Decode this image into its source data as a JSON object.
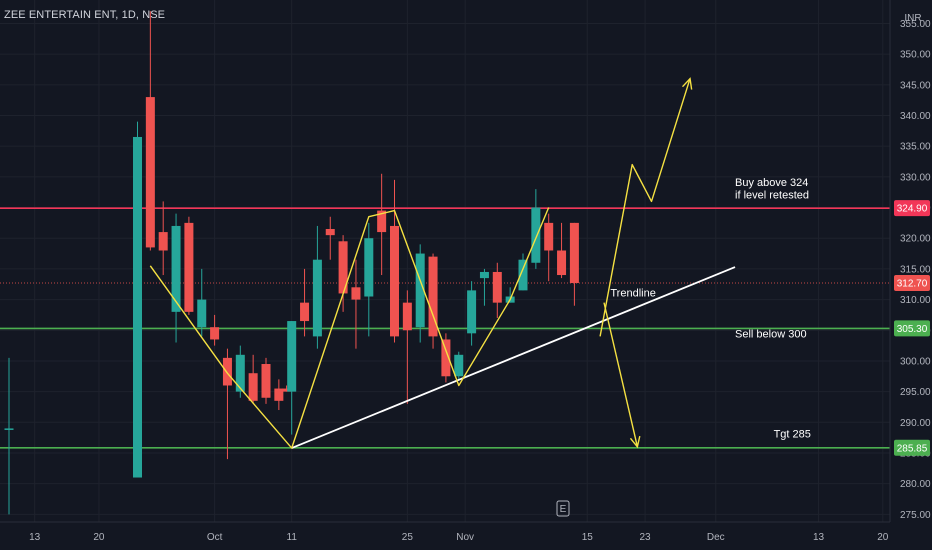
{
  "header": {
    "title": "ZEE ENTERTAIN ENT, 1D, NSE"
  },
  "currency": "INR",
  "event_marker": "E",
  "colors": {
    "background": "#131722",
    "grid": "#1e222d",
    "up": "#26a69a",
    "down": "#ef5350",
    "resistance": "#f23658",
    "support": "#4caf50",
    "trendline": "#ffffff",
    "projection": "#f5e142",
    "current_price": "#ef5350"
  },
  "chart_data": {
    "type": "candlestick",
    "symbol": "ZEE ENTERTAIN ENT",
    "interval": "1D",
    "exchange": "NSE",
    "ylim": [
      275,
      357
    ],
    "y_ticks": [
      275,
      280,
      285,
      290,
      295,
      300,
      305,
      310,
      315,
      320,
      325,
      330,
      335,
      340,
      345,
      350,
      355
    ],
    "x_ticks": [
      {
        "label": "13",
        "slot": -8
      },
      {
        "label": "20",
        "slot": -3
      },
      {
        "label": "Oct",
        "slot": 6
      },
      {
        "label": "11",
        "slot": 12
      },
      {
        "label": "25",
        "slot": 21
      },
      {
        "label": "Nov",
        "slot": 25.5
      },
      {
        "label": "15",
        "slot": 35
      },
      {
        "label": "23",
        "slot": 39.5
      },
      {
        "label": "Dec",
        "slot": 45
      },
      {
        "label": "13",
        "slot": 53
      },
      {
        "label": "20",
        "slot": 58
      }
    ],
    "candles": [
      {
        "slot": -10,
        "o": 289.0,
        "h": 300.5,
        "l": 275.0,
        "c": 289.0
      },
      {
        "slot": 0,
        "o": 281.0,
        "h": 339.0,
        "l": 281.0,
        "c": 336.5
      },
      {
        "slot": 1,
        "o": 343.0,
        "h": 357.0,
        "l": 318.0,
        "c": 318.5
      },
      {
        "slot": 2,
        "o": 321.0,
        "h": 326.0,
        "l": 314.0,
        "c": 318.0
      },
      {
        "slot": 3,
        "o": 308.0,
        "h": 324.0,
        "l": 303.0,
        "c": 322.0
      },
      {
        "slot": 4,
        "o": 322.5,
        "h": 323.5,
        "l": 307.5,
        "c": 308.0
      },
      {
        "slot": 5,
        "o": 305.5,
        "h": 315.0,
        "l": 304.0,
        "c": 310.0
      },
      {
        "slot": 6,
        "o": 305.5,
        "h": 307.5,
        "l": 302.5,
        "c": 303.5
      },
      {
        "slot": 7,
        "o": 300.5,
        "h": 302.0,
        "l": 284.0,
        "c": 296.0
      },
      {
        "slot": 8,
        "o": 295.0,
        "h": 302.5,
        "l": 294.0,
        "c": 301.0
      },
      {
        "slot": 9,
        "o": 298.0,
        "h": 301.0,
        "l": 293.0,
        "c": 293.5
      },
      {
        "slot": 10,
        "o": 299.5,
        "h": 300.5,
        "l": 293.0,
        "c": 294.0
      },
      {
        "slot": 11,
        "o": 295.5,
        "h": 297.0,
        "l": 292.0,
        "c": 293.5
      },
      {
        "slot": 11.6,
        "o": 295.5,
        "h": 296.0,
        "l": 295.0,
        "c": 295.0
      },
      {
        "slot": 12,
        "o": 295.0,
        "h": 306.5,
        "l": 288.0,
        "c": 306.5
      },
      {
        "slot": 13,
        "o": 309.5,
        "h": 315.0,
        "l": 304.0,
        "c": 306.5
      },
      {
        "slot": 14,
        "o": 304.0,
        "h": 322.0,
        "l": 302.0,
        "c": 316.5
      },
      {
        "slot": 15,
        "o": 321.5,
        "h": 323.5,
        "l": 316.5,
        "c": 320.5
      },
      {
        "slot": 16,
        "o": 319.5,
        "h": 320.5,
        "l": 308.0,
        "c": 311.0
      },
      {
        "slot": 17,
        "o": 312.0,
        "h": 316.5,
        "l": 302.0,
        "c": 310.0
      },
      {
        "slot": 18,
        "o": 310.5,
        "h": 322.5,
        "l": 304.0,
        "c": 320.0
      },
      {
        "slot": 19,
        "o": 324.5,
        "h": 330.5,
        "l": 314.0,
        "c": 321.0
      },
      {
        "slot": 20,
        "o": 322.0,
        "h": 329.5,
        "l": 303.0,
        "c": 304.0
      },
      {
        "slot": 21,
        "o": 309.5,
        "h": 311.5,
        "l": 293.0,
        "c": 305.0
      },
      {
        "slot": 22,
        "o": 305.5,
        "h": 319.0,
        "l": 303.0,
        "c": 317.5
      },
      {
        "slot": 23,
        "o": 317.0,
        "h": 317.5,
        "l": 302.0,
        "c": 304.0
      },
      {
        "slot": 24,
        "o": 303.5,
        "h": 304.5,
        "l": 296.5,
        "c": 297.5
      },
      {
        "slot": 25,
        "o": 297.5,
        "h": 301.5,
        "l": 297.0,
        "c": 301.0
      },
      {
        "slot": 26,
        "o": 304.5,
        "h": 313.0,
        "l": 302.5,
        "c": 311.5
      },
      {
        "slot": 27,
        "o": 313.5,
        "h": 315.0,
        "l": 309.0,
        "c": 314.5
      },
      {
        "slot": 28,
        "o": 314.5,
        "h": 316.0,
        "l": 307.0,
        "c": 309.5
      },
      {
        "slot": 29,
        "o": 309.5,
        "h": 312.0,
        "l": 309.5,
        "c": 310.5
      },
      {
        "slot": 30,
        "o": 311.5,
        "h": 317.5,
        "l": 311.5,
        "c": 316.5
      },
      {
        "slot": 31,
        "o": 316.0,
        "h": 328.0,
        "l": 315.0,
        "c": 325.0
      },
      {
        "slot": 32,
        "o": 322.5,
        "h": 324.0,
        "l": 313.0,
        "c": 318.0
      },
      {
        "slot": 33,
        "o": 318.0,
        "h": 322.5,
        "l": 313.5,
        "c": 314.0
      },
      {
        "slot": 34,
        "o": 322.5,
        "h": 322.5,
        "l": 309.0,
        "c": 312.7
      }
    ],
    "levels": [
      {
        "value": 324.9,
        "label": "324.90",
        "color": "#f23658",
        "badge_color": "#f23658"
      },
      {
        "value": 305.3,
        "label": "305.30",
        "color": "#4caf50",
        "badge_color": "#4caf50"
      },
      {
        "value": 285.85,
        "label": "285.85",
        "color": "#4caf50",
        "badge_color": "#4caf50"
      }
    ],
    "current_price": {
      "value": 312.7,
      "label": "312.70"
    },
    "annotations": [
      {
        "text": "Buy above 324",
        "slot": 46.5,
        "y": 328.5
      },
      {
        "text": "if level retested",
        "slot": 46.5,
        "y": 326.5
      },
      {
        "text": "Sell below 300",
        "slot": 46.5,
        "y": 303.8
      },
      {
        "text": "Tgt 285",
        "slot": 49.5,
        "y": 287.5
      },
      {
        "text": "Trendline",
        "slot": 36.8,
        "y": 310.5
      }
    ],
    "trendline": {
      "from": {
        "slot": 12,
        "y": 285.8
      },
      "to": {
        "slot": 46.5,
        "y": 315.3
      }
    },
    "projection_paths": [
      [
        {
          "slot": 1,
          "y": 315.5
        },
        {
          "slot": 7,
          "y": 298
        },
        {
          "slot": 12,
          "y": 285.8
        },
        {
          "slot": 18,
          "y": 323.5
        },
        {
          "slot": 20,
          "y": 324.5
        },
        {
          "slot": 25,
          "y": 296
        },
        {
          "slot": 29,
          "y": 310
        },
        {
          "slot": 32,
          "y": 325
        }
      ],
      [
        {
          "slot": 36,
          "y": 304
        },
        {
          "slot": 38.5,
          "y": 332
        },
        {
          "slot": 40,
          "y": 326
        },
        {
          "slot": 43,
          "y": 346
        }
      ],
      [
        {
          "slot": 36.3,
          "y": 309.5
        },
        {
          "slot": 38.9,
          "y": 286
        }
      ]
    ]
  }
}
